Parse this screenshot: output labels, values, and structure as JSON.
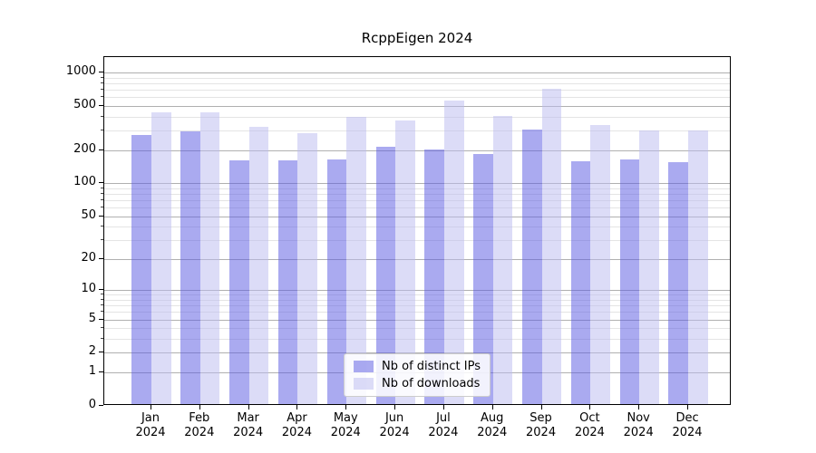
{
  "figure": {
    "title": "RcppEigen 2024"
  },
  "chart_data": {
    "type": "bar",
    "title": "RcppEigen 2024",
    "categories": [
      "Jan",
      "Feb",
      "Mar",
      "Apr",
      "May",
      "Jun",
      "Jul",
      "Aug",
      "Sep",
      "Oct",
      "Nov",
      "Dec"
    ],
    "category_year": "2024",
    "series": [
      {
        "name": "Nb of distinct IPs",
        "apparent_color": "#a9a9f0",
        "fill_rgba": "rgba(86,86,226,0.5)",
        "values": [
          270,
          288,
          158,
          157,
          161,
          211,
          198,
          180,
          298,
          154,
          160,
          151
        ]
      },
      {
        "name": "Nb of downloads",
        "apparent_color": "#dcdcf7",
        "fill_rgba": "rgba(186,186,240,0.5)",
        "values": [
          428,
          430,
          317,
          280,
          388,
          361,
          550,
          395,
          703,
          328,
          293,
          294
        ]
      }
    ],
    "xlabel": "",
    "ylabel": "",
    "yscale": "log1p",
    "ylim": [
      0,
      1377
    ],
    "yticks": [
      0,
      1,
      2,
      5,
      10,
      20,
      50,
      100,
      200,
      500,
      1000
    ],
    "minor_gridlines": [
      3,
      4,
      6,
      7,
      8,
      9,
      30,
      40,
      60,
      70,
      80,
      90,
      300,
      400,
      600,
      700,
      800,
      900
    ],
    "grid": true,
    "legend_position": "lower center",
    "colors": {
      "major_grid": "#b0b0b0",
      "minor_grid": "#e4e4e4",
      "spine": "#000000",
      "text": "#000000",
      "background": "#ffffff"
    }
  }
}
